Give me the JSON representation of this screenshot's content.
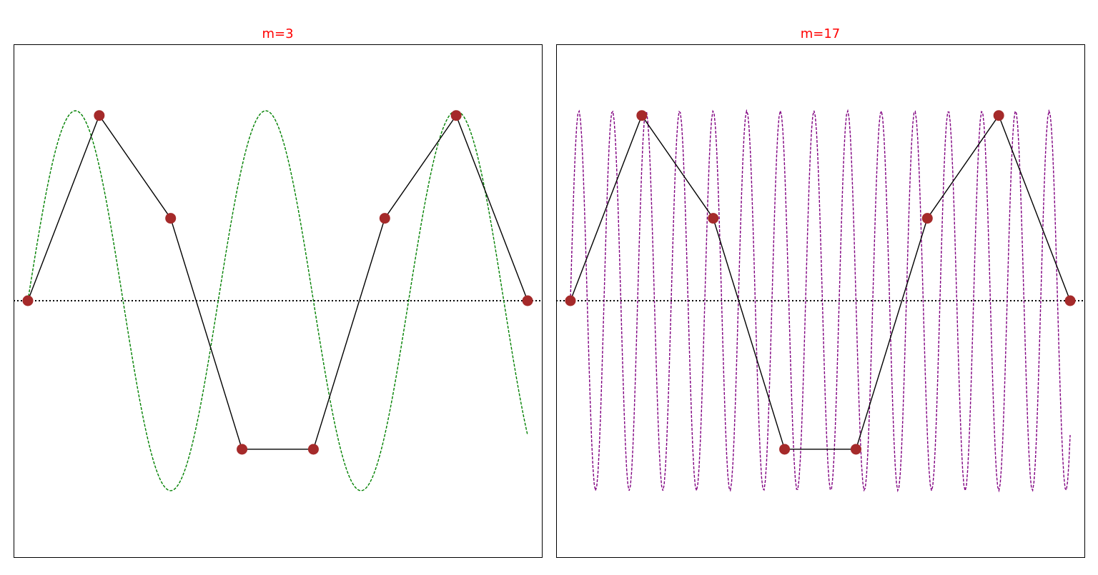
{
  "chart_data": [
    {
      "type": "line",
      "title": "m=3",
      "title_color": "#ff0000",
      "xlim": [
        -0.2,
        7.2
      ],
      "ylim": [
        -1.35,
        1.35
      ],
      "grid": false,
      "axis_ticks": false,
      "baseline": {
        "y": 0,
        "style": "dotted",
        "color": "#000000"
      },
      "series": [
        {
          "kind": "underlying_sine",
          "frequency_m": 3,
          "samples": 8,
          "amplitude": 1,
          "x_range": [
            0,
            7
          ],
          "style": "dashed",
          "color": "#008000"
        },
        {
          "kind": "sampled_points",
          "x": [
            0,
            1,
            2,
            3,
            4,
            5,
            6,
            7
          ],
          "y": [
            0,
            0.975,
            0.434,
            -0.782,
            -0.782,
            0.434,
            0.975,
            0
          ],
          "line_color": "#000000",
          "marker_color": "#a52a2a"
        }
      ]
    },
    {
      "type": "line",
      "title": "m=17",
      "title_color": "#ff0000",
      "xlim": [
        -0.2,
        7.2
      ],
      "ylim": [
        -1.35,
        1.35
      ],
      "grid": false,
      "axis_ticks": false,
      "baseline": {
        "y": 0,
        "style": "dotted",
        "color": "#000000"
      },
      "series": [
        {
          "kind": "underlying_sine",
          "frequency_m": 17,
          "samples": 8,
          "amplitude": 1,
          "x_range": [
            0,
            7
          ],
          "style": "dashed",
          "color": "#800080"
        },
        {
          "kind": "sampled_points",
          "x": [
            0,
            1,
            2,
            3,
            4,
            5,
            6,
            7
          ],
          "y": [
            0,
            0.975,
            0.434,
            -0.782,
            -0.782,
            0.434,
            0.975,
            0
          ],
          "line_color": "#000000",
          "marker_color": "#a52a2a"
        }
      ]
    }
  ]
}
